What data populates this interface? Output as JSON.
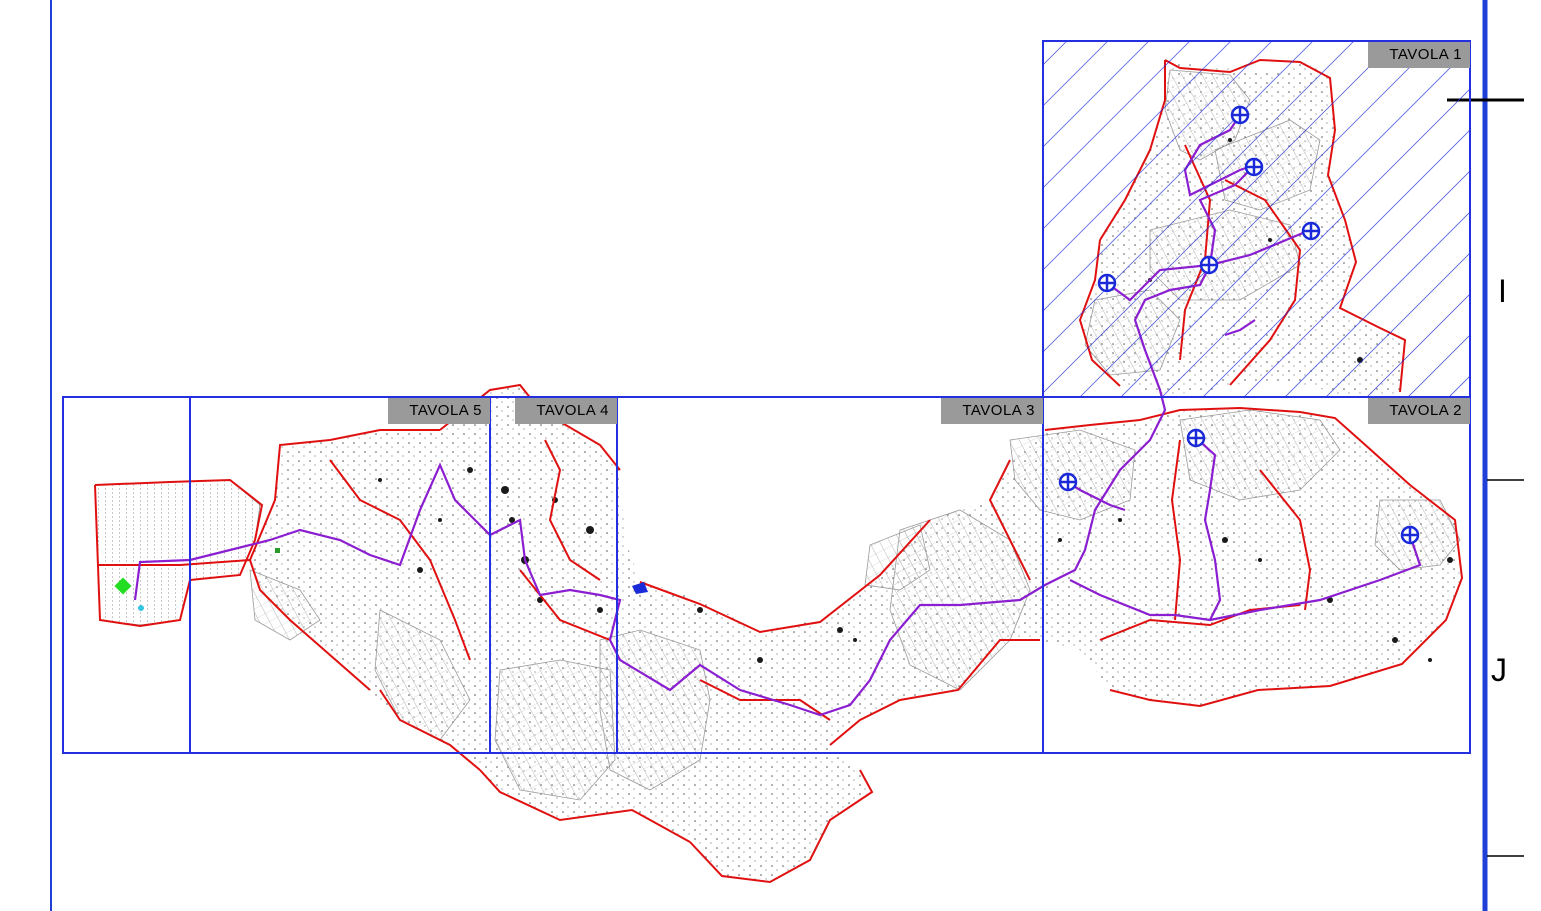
{
  "tiles": [
    {
      "id": "tavola-1",
      "label": "TAVOLA  1"
    },
    {
      "id": "tavola-2",
      "label": "TAVOLA  2"
    },
    {
      "id": "tavola-3",
      "label": "TAVOLA  3"
    },
    {
      "id": "tavola-4",
      "label": "TAVOLA  4"
    },
    {
      "id": "tavola-5",
      "label": "TAVOLA  5"
    }
  ],
  "grid_rows": [
    "I",
    "J"
  ],
  "colors": {
    "frame": "#1f3fd6",
    "tile_border": "#2430e0",
    "hatch": "#1a28d8",
    "boundary": "#e01010",
    "route": "#8a1ed0",
    "parcels": "#a8a8a8",
    "label_bg": "#9a9a9a",
    "marker": "#1a2ad8",
    "start_marker": "#22dd22"
  },
  "selected_tile": "TAVOLA  1"
}
